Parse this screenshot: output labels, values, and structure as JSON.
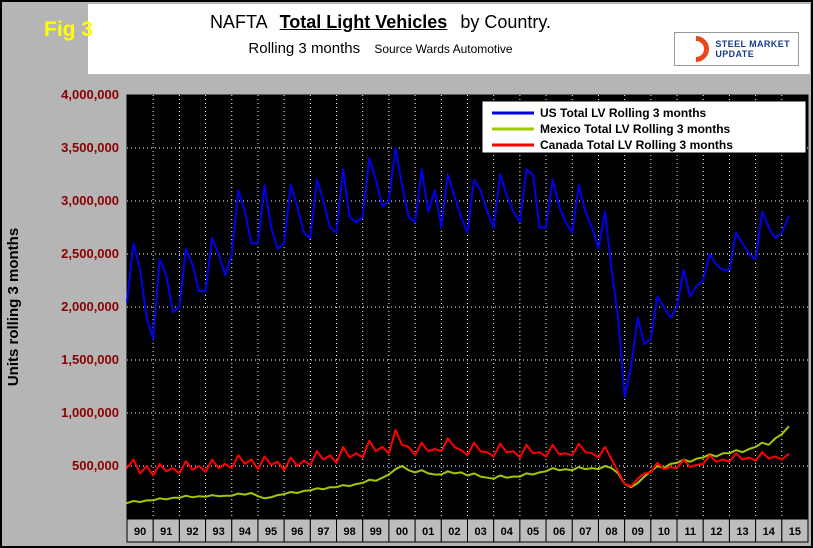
{
  "figure_label": "Fig 3",
  "header": {
    "title_part1": "NAFTA",
    "title_emph": "Total Light Vehicles",
    "title_part2": "by Country.",
    "subtitle": "Rolling 3 months",
    "source": "Source Wards Automotive"
  },
  "logo": {
    "line1": "STEEL MARKET",
    "line2": "UPDATE"
  },
  "colors": {
    "page_bg": "#b5b5b5",
    "plot_bg": "#000000",
    "grid": "#ffffff",
    "y_tick_text": "#8b0000",
    "fig_label": "#ffff00"
  },
  "chart_data": {
    "type": "line",
    "title": "NAFTA Total Light Vehicles by Country, Rolling 3 months",
    "ylabel": "Units rolling 3 months",
    "xlabel": "",
    "grid": true,
    "legend_position": "top-right",
    "plot_bg": "#000000",
    "ylim": [
      0,
      4000000
    ],
    "y_ticks": [
      500000,
      1000000,
      1500000,
      2000000,
      2500000,
      3000000,
      3500000,
      4000000
    ],
    "x_range": [
      1990,
      2016
    ],
    "x_start": 1990,
    "x_step": 0.25,
    "x_axis_labels": [
      "90",
      "91",
      "92",
      "93",
      "94",
      "95",
      "96",
      "97",
      "98",
      "99",
      "00",
      "01",
      "02",
      "03",
      "04",
      "05",
      "06",
      "07",
      "08",
      "09",
      "10",
      "11",
      "12",
      "13",
      "14",
      "15"
    ],
    "series": [
      {
        "name": "US Total LV Rolling 3 months",
        "color": "#0000ee",
        "values": [
          2050000,
          2600000,
          2350000,
          1900000,
          1700000,
          2450000,
          2300000,
          1950000,
          2000000,
          2550000,
          2400000,
          2150000,
          2150000,
          2650000,
          2500000,
          2300000,
          2500000,
          3100000,
          2900000,
          2600000,
          2600000,
          3150000,
          2750000,
          2550000,
          2600000,
          3150000,
          2950000,
          2700000,
          2650000,
          3200000,
          3000000,
          2750000,
          2700000,
          3300000,
          2850000,
          2800000,
          2850000,
          3400000,
          3200000,
          2950000,
          3000000,
          3500000,
          3150000,
          2850000,
          2800000,
          3300000,
          2900000,
          3100000,
          2750000,
          3250000,
          3050000,
          2850000,
          2700000,
          3200000,
          3100000,
          2900000,
          2750000,
          3250000,
          3050000,
          2900000,
          2800000,
          3300000,
          3250000,
          2750000,
          2750000,
          3200000,
          2950000,
          2800000,
          2700000,
          3150000,
          2900000,
          2750000,
          2550000,
          2900000,
          2350000,
          1900000,
          1150000,
          1450000,
          1900000,
          1650000,
          1700000,
          2100000,
          2000000,
          1900000,
          2000000,
          2350000,
          2100000,
          2200000,
          2250000,
          2500000,
          2400000,
          2350000,
          2350000,
          2700000,
          2600000,
          2500000,
          2450000,
          2900000,
          2750000,
          2650000,
          2700000,
          2850000
        ]
      },
      {
        "name": "Mexico Total LV Rolling 3 months",
        "color": "#a0c800",
        "values": [
          150000,
          170000,
          160000,
          175000,
          175000,
          195000,
          185000,
          200000,
          200000,
          220000,
          205000,
          215000,
          210000,
          225000,
          215000,
          220000,
          220000,
          240000,
          230000,
          245000,
          215000,
          195000,
          205000,
          225000,
          235000,
          255000,
          245000,
          265000,
          270000,
          290000,
          280000,
          300000,
          300000,
          320000,
          310000,
          330000,
          340000,
          370000,
          360000,
          390000,
          420000,
          470000,
          500000,
          460000,
          440000,
          460000,
          430000,
          420000,
          420000,
          450000,
          430000,
          440000,
          410000,
          430000,
          400000,
          390000,
          380000,
          410000,
          390000,
          400000,
          400000,
          430000,
          420000,
          440000,
          450000,
          480000,
          460000,
          470000,
          460000,
          490000,
          470000,
          480000,
          470000,
          500000,
          480000,
          430000,
          330000,
          300000,
          340000,
          400000,
          450000,
          500000,
          480000,
          520000,
          530000,
          560000,
          540000,
          570000,
          580000,
          610000,
          590000,
          620000,
          620000,
          650000,
          630000,
          660000,
          680000,
          720000,
          700000,
          760000,
          800000,
          870000
        ]
      },
      {
        "name": "Canada Total LV Rolling 3 months",
        "color": "#ff0000",
        "values": [
          480000,
          560000,
          430000,
          500000,
          410000,
          520000,
          450000,
          480000,
          430000,
          545000,
          465000,
          500000,
          445000,
          560000,
          480000,
          520000,
          480000,
          600000,
          520000,
          560000,
          470000,
          590000,
          510000,
          540000,
          460000,
          580000,
          500000,
          550000,
          510000,
          640000,
          560000,
          600000,
          530000,
          680000,
          580000,
          620000,
          580000,
          740000,
          640000,
          680000,
          620000,
          840000,
          700000,
          680000,
          600000,
          720000,
          640000,
          660000,
          640000,
          760000,
          680000,
          650000,
          600000,
          720000,
          640000,
          630000,
          590000,
          710000,
          630000,
          640000,
          580000,
          700000,
          620000,
          630000,
          590000,
          700000,
          610000,
          620000,
          600000,
          710000,
          630000,
          620000,
          580000,
          680000,
          560000,
          450000,
          330000,
          310000,
          380000,
          430000,
          440000,
          530000,
          470000,
          490000,
          480000,
          560000,
          490000,
          510000,
          520000,
          600000,
          540000,
          560000,
          540000,
          620000,
          560000,
          580000,
          550000,
          630000,
          570000,
          590000,
          560000,
          610000
        ]
      }
    ]
  }
}
